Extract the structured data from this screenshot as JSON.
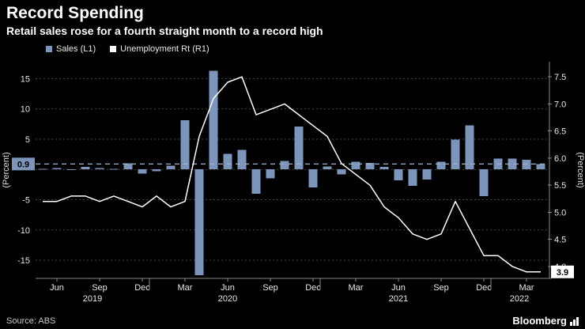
{
  "header": {
    "title": "Record Spending",
    "subtitle": "Retail sales rose for a fourth straight month to a record high"
  },
  "legend": [
    {
      "label": "Sales (L1)",
      "color": "#7d95ba"
    },
    {
      "label": "Unemployment Rt (R1)",
      "color": "#ffffff"
    }
  ],
  "footer": {
    "source": "Source: ABS",
    "brand": "Bloomberg"
  },
  "colors": {
    "background": "#000000",
    "bar": "#7d95ba",
    "line": "#ffffff",
    "grid": "#454545",
    "axis": "#8a8a8a",
    "tracking_line": "#9db2cf",
    "left_badge_bg": "#7d95ba",
    "left_badge_text": "#000000",
    "right_badge_bg": "#ffffff",
    "right_badge_text": "#000000",
    "tick_text": "#e8e8e8"
  },
  "chart_data": {
    "type": "bar",
    "note": "combo chart: monthly retail sales bars (left axis) + unemployment rate line (right axis)",
    "x": [
      "May 2019",
      "Jun 2019",
      "Jul 2019",
      "Aug 2019",
      "Sep 2019",
      "Oct 2019",
      "Nov 2019",
      "Dec 2019",
      "Jan 2020",
      "Feb 2020",
      "Mar 2020",
      "Apr 2020",
      "May 2020",
      "Jun 2020",
      "Jul 2020",
      "Aug 2020",
      "Sep 2020",
      "Oct 2020",
      "Nov 2020",
      "Dec 2020",
      "Jan 2021",
      "Feb 2021",
      "Mar 2021",
      "Apr 2021",
      "May 2021",
      "Jun 2021",
      "Jul 2021",
      "Aug 2021",
      "Sep 2021",
      "Oct 2021",
      "Nov 2021",
      "Dec 2021",
      "Jan 2022",
      "Feb 2022",
      "Mar 2022",
      "Apr 2022"
    ],
    "series": [
      {
        "name": "Sales (L1)",
        "type": "bar",
        "axis": "left",
        "color": "#7d95ba",
        "values": [
          0.1,
          0.2,
          -0.1,
          0.4,
          0.2,
          0.1,
          1.0,
          -0.7,
          -0.3,
          0.6,
          8.1,
          -17.5,
          16.3,
          2.6,
          3.2,
          -4.0,
          -1.5,
          1.4,
          7.1,
          -3.0,
          0.5,
          -0.8,
          1.3,
          1.1,
          0.4,
          -1.8,
          -2.7,
          -1.7,
          1.3,
          4.9,
          7.3,
          -4.4,
          1.8,
          1.8,
          1.6,
          0.9
        ]
      },
      {
        "name": "Unemployment Rt (R1)",
        "type": "line",
        "axis": "right",
        "color": "#ffffff",
        "values": [
          5.2,
          5.2,
          5.3,
          5.3,
          5.2,
          5.3,
          5.2,
          5.1,
          5.3,
          5.1,
          5.2,
          6.4,
          7.1,
          7.4,
          7.5,
          6.8,
          6.9,
          7.0,
          6.8,
          6.6,
          6.4,
          5.9,
          5.7,
          5.5,
          5.1,
          4.9,
          4.6,
          4.5,
          4.6,
          5.2,
          4.7,
          4.2,
          4.2,
          4.0,
          3.9,
          3.9
        ]
      }
    ],
    "x_tick_labels": [
      {
        "i": 1,
        "label": "Jun"
      },
      {
        "i": 4,
        "label": "Sep"
      },
      {
        "i": 7,
        "label": "Dec"
      },
      {
        "i": 10,
        "label": "Mar"
      },
      {
        "i": 13,
        "label": "Jun"
      },
      {
        "i": 16,
        "label": "Sep"
      },
      {
        "i": 19,
        "label": "Dec"
      },
      {
        "i": 22,
        "label": "Mar"
      },
      {
        "i": 25,
        "label": "Jun"
      },
      {
        "i": 28,
        "label": "Sep"
      },
      {
        "i": 31,
        "label": "Dec"
      },
      {
        "i": 34,
        "label": "Mar"
      }
    ],
    "year_labels": [
      {
        "label": "2019",
        "center_i": 3.5
      },
      {
        "label": "2020",
        "center_i": 13
      },
      {
        "label": "2021",
        "center_i": 25
      },
      {
        "label": "2022",
        "center_i": 33.5
      }
    ],
    "year_boundaries_i": [
      8,
      20,
      32
    ],
    "left_axis": {
      "label": "(Percent)",
      "ticks": [
        15,
        10,
        5,
        0,
        -5,
        -10,
        -15
      ],
      "range": [
        -18.0,
        17.8
      ],
      "last_value": 0.9,
      "last_value_label": "0.9"
    },
    "right_axis": {
      "label": "(Percent)",
      "ticks": [
        7.5,
        7.0,
        6.5,
        6.0,
        5.5,
        5.0,
        4.5,
        4.0
      ],
      "range": [
        3.78,
        7.78
      ],
      "last_value": 3.9,
      "last_value_label": "3.9"
    },
    "grid": "horizontal-dotted",
    "legend_position": "top-left"
  }
}
